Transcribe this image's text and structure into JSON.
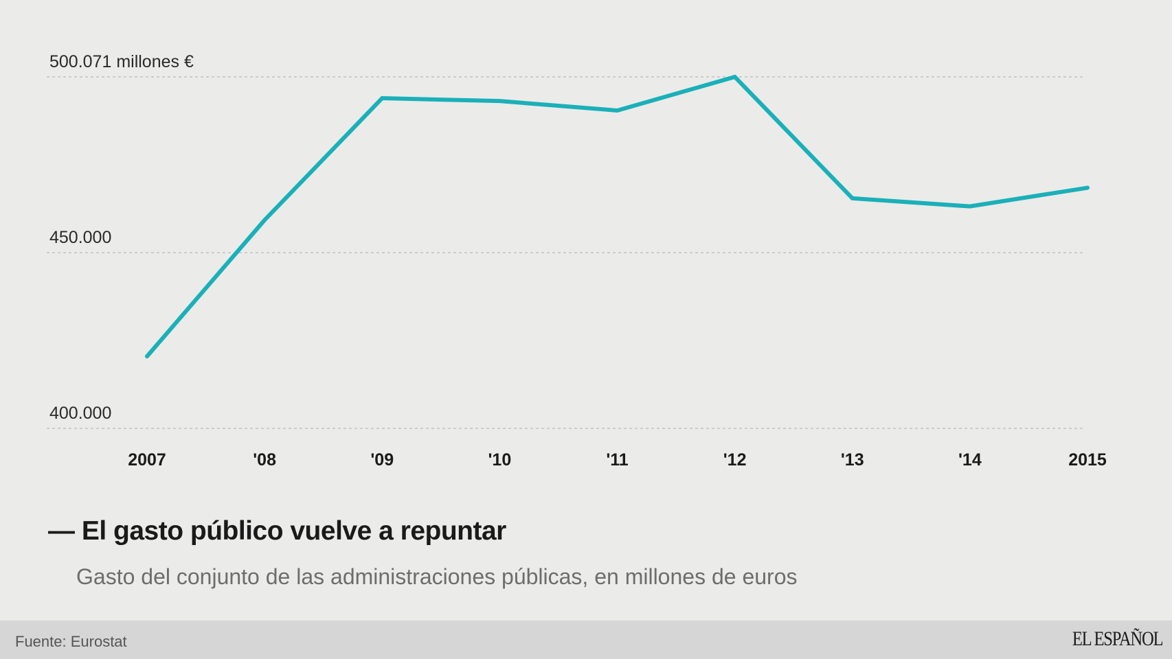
{
  "chart_data": {
    "type": "line",
    "title": "El gasto público vuelve a repuntar",
    "subtitle": "Gasto del conjunto de las administraciones públicas, en millones de euros",
    "categories": [
      "2007",
      "'08",
      "'09",
      "'10",
      "'11",
      "'12",
      "'13",
      "'14",
      "2015"
    ],
    "series": [
      {
        "values": [
          420500,
          459300,
          494000,
          493200,
          490500,
          500071,
          465500,
          463200,
          468500
        ]
      }
    ],
    "y_ticks": [
      {
        "value": 500071,
        "label": "500.071 millones €"
      },
      {
        "value": 450000,
        "label": "450.000"
      },
      {
        "value": 400000,
        "label": "400.000"
      }
    ],
    "ylim": [
      400000,
      500071
    ],
    "xlabel": "",
    "ylabel": "",
    "grid": true,
    "line_color": "#1ab0b8",
    "grid_color": "#c2c2c2"
  },
  "footer": {
    "source": "Fuente: Eurostat",
    "brand": "EL ESPAÑOL"
  }
}
